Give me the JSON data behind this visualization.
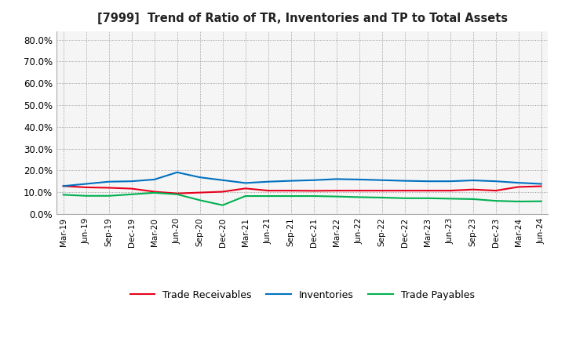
{
  "title": "[7999]  Trend of Ratio of TR, Inventories and TP to Total Assets",
  "labels": [
    "Mar-19",
    "Jun-19",
    "Sep-19",
    "Dec-19",
    "Mar-20",
    "Jun-20",
    "Sep-20",
    "Dec-20",
    "Mar-21",
    "Jun-21",
    "Sep-21",
    "Dec-21",
    "Mar-22",
    "Jun-22",
    "Sep-22",
    "Dec-22",
    "Mar-23",
    "Jun-23",
    "Sep-23",
    "Dec-23",
    "Mar-24",
    "Jun-24"
  ],
  "trade_receivables": [
    0.128,
    0.122,
    0.12,
    0.116,
    0.102,
    0.094,
    0.098,
    0.102,
    0.117,
    0.107,
    0.107,
    0.106,
    0.107,
    0.107,
    0.107,
    0.107,
    0.107,
    0.107,
    0.112,
    0.107,
    0.124,
    0.127
  ],
  "inventories": [
    0.128,
    0.138,
    0.148,
    0.15,
    0.158,
    0.191,
    0.168,
    0.155,
    0.142,
    0.148,
    0.152,
    0.155,
    0.16,
    0.158,
    0.155,
    0.152,
    0.15,
    0.15,
    0.154,
    0.15,
    0.143,
    0.138
  ],
  "trade_payables": [
    0.088,
    0.083,
    0.083,
    0.09,
    0.097,
    0.09,
    0.063,
    0.04,
    0.082,
    0.082,
    0.082,
    0.082,
    0.08,
    0.077,
    0.075,
    0.072,
    0.072,
    0.07,
    0.068,
    0.06,
    0.057,
    0.058
  ],
  "color_tr": "#e8001c",
  "color_inv": "#0070c0",
  "color_tp": "#00b050",
  "ylim": [
    0.0,
    0.84
  ],
  "yticks": [
    0.0,
    0.1,
    0.2,
    0.3,
    0.4,
    0.5,
    0.6,
    0.7,
    0.8
  ],
  "legend_tr": "Trade Receivables",
  "legend_inv": "Inventories",
  "legend_tp": "Trade Payables",
  "bg_color": "#f5f5f5"
}
